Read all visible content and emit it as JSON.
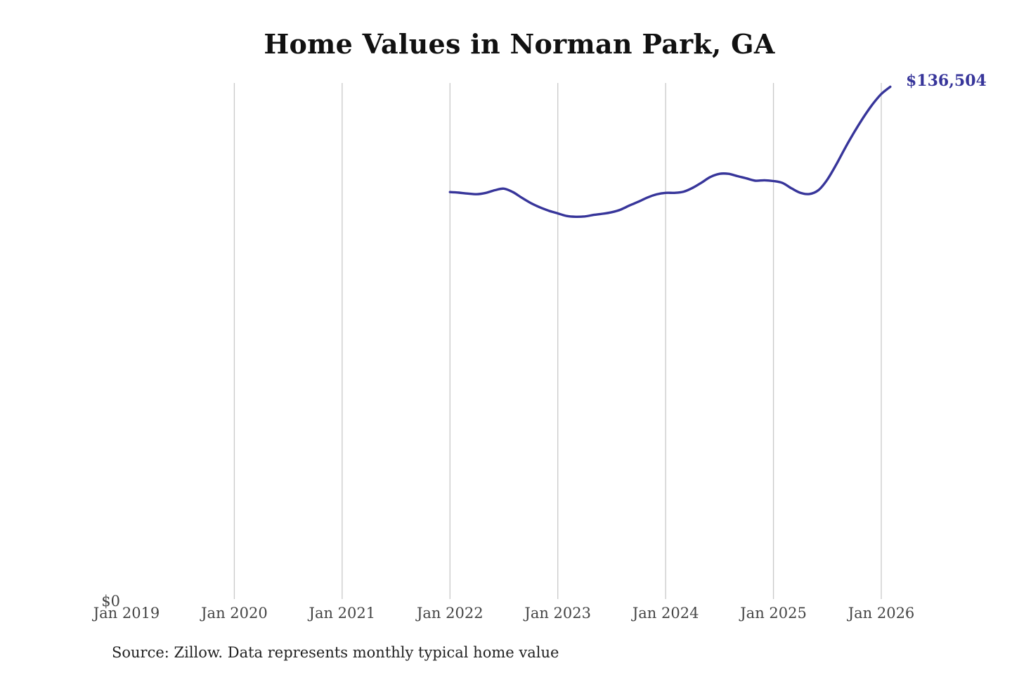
{
  "chart_data": {
    "type": "line",
    "title": "Home Values in Norman Park, GA",
    "xlabel": "",
    "ylabel": "",
    "x_tick_labels": [
      "Jan 2019",
      "Jan 2020",
      "Jan 2021",
      "Jan 2022",
      "Jan 2023",
      "Jan 2024",
      "Jan 2025",
      "Jan 2026"
    ],
    "y_tick_labels": [
      "$0"
    ],
    "ylim": [
      0,
      136504
    ],
    "xlim": [
      "2019-01",
      "2026-02"
    ],
    "grid": "vertical",
    "line_color": "#37359a",
    "end_label": "$136,504",
    "series": [
      {
        "x": [
          "2022-01",
          "2022-02",
          "2022-03",
          "2022-04",
          "2022-05",
          "2022-06",
          "2022-07",
          "2022-08",
          "2022-09",
          "2022-10",
          "2022-11",
          "2022-12",
          "2023-01",
          "2023-02",
          "2023-03",
          "2023-04",
          "2023-05",
          "2023-06",
          "2023-07",
          "2023-08",
          "2023-09",
          "2023-10",
          "2023-11",
          "2023-12",
          "2024-01",
          "2024-02",
          "2024-03",
          "2024-04",
          "2024-05",
          "2024-06",
          "2024-07",
          "2024-08",
          "2024-09",
          "2024-10",
          "2024-11",
          "2024-12",
          "2025-01",
          "2025-02",
          "2025-03",
          "2025-04",
          "2025-05",
          "2025-06",
          "2025-07",
          "2025-08",
          "2025-09",
          "2025-10",
          "2025-11",
          "2025-12",
          "2026-01",
          "2026-02"
        ],
        "values": [
          107800,
          107650,
          107400,
          107250,
          107600,
          108300,
          108700,
          107800,
          106300,
          104900,
          103800,
          102900,
          102200,
          101500,
          101300,
          101400,
          101800,
          102100,
          102500,
          103200,
          104300,
          105300,
          106400,
          107200,
          107600,
          107600,
          107900,
          108900,
          110300,
          111800,
          112600,
          112600,
          112000,
          111400,
          110800,
          110900,
          110700,
          110200,
          108800,
          107600,
          107300,
          108300,
          111100,
          115100,
          119500,
          123600,
          127400,
          130800,
          133600,
          135500
        ]
      }
    ]
  },
  "source_text": "Source: Zillow. Data represents monthly typical home value"
}
